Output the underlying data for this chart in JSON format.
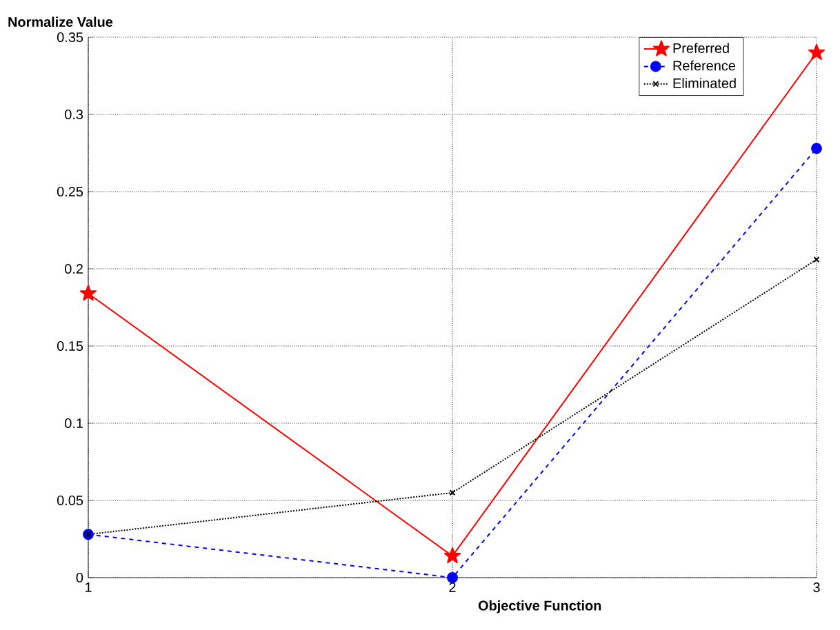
{
  "chart_data": {
    "type": "line",
    "xlabel": "Objective Function",
    "ylabel": "Normalize Value",
    "x": [
      1,
      2,
      3
    ],
    "xlim": [
      1,
      3
    ],
    "xticks": [
      1,
      2,
      3
    ],
    "ylim": [
      0,
      0.35
    ],
    "yticks": [
      0,
      0.05,
      0.1,
      0.15,
      0.2,
      0.25,
      0.3,
      0.35
    ],
    "grid": true,
    "legend": "top right",
    "series": [
      {
        "name": "Preferred",
        "color": "#ff0000",
        "marker": "star",
        "line_style": "solid",
        "values": [
          0.184,
          0.014,
          0.34
        ]
      },
      {
        "name": "Reference",
        "color": "#0000ff",
        "marker": "circle",
        "line_style": "dashed",
        "values": [
          0.028,
          0.0,
          0.278
        ]
      },
      {
        "name": "Eliminated",
        "color": "#000000",
        "marker": "cross",
        "line_style": "dotted",
        "values": [
          0.028,
          0.055,
          0.206
        ]
      }
    ]
  }
}
